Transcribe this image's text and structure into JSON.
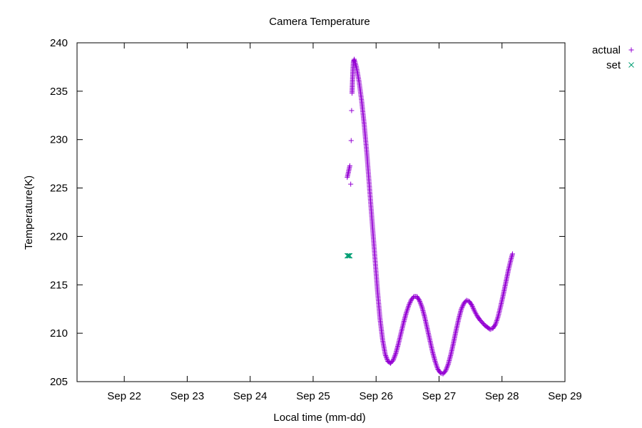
{
  "chart_data": {
    "type": "scatter",
    "title": "Camera Temperature",
    "xlabel": "Local time (mm-dd)",
    "ylabel": "Temperature(K)",
    "x_ticks": [
      "Sep 22",
      "Sep 23",
      "Sep 24",
      "Sep 25",
      "Sep 26",
      "Sep 27",
      "Sep 28",
      "Sep 29"
    ],
    "y_ticks": [
      "205",
      "210",
      "215",
      "220",
      "225",
      "230",
      "235",
      "240"
    ],
    "xlim": [
      "Sep 21 06:00",
      "Sep 29 00:00"
    ],
    "ylim": [
      205,
      240
    ],
    "grid": false,
    "legend": "top-right outside",
    "series": [
      {
        "name": "actual",
        "marker": "+",
        "color": "#9400d3",
        "points": [
          [
            "Sep 25 13:00",
            226.1
          ],
          [
            "Sep 25 13:20",
            226.5
          ],
          [
            "Sep 25 13:40",
            226.9
          ],
          [
            "Sep 25 14:00",
            227.3
          ],
          [
            "Sep 25 14:20",
            225.4
          ],
          [
            "Sep 25 14:30",
            229.9
          ],
          [
            "Sep 25 14:40",
            233.0
          ],
          [
            "Sep 25 14:50",
            234.8
          ],
          [
            "Sep 25 15:00",
            236.0
          ],
          [
            "Sep 25 15:10",
            237.2
          ],
          [
            "Sep 25 15:20",
            238.0
          ],
          [
            "Sep 25 15:40",
            238.3
          ],
          [
            "Sep 25 16:30",
            237.5
          ],
          [
            "Sep 25 17:30",
            236.0
          ],
          [
            "Sep 25 18:30",
            234.0
          ],
          [
            "Sep 25 19:30",
            231.5
          ],
          [
            "Sep 25 20:30",
            228.5
          ],
          [
            "Sep 25 21:30",
            225.0
          ],
          [
            "Sep 25 22:30",
            221.5
          ],
          [
            "Sep 25 23:30",
            218.0
          ],
          [
            "Sep 26 00:30",
            214.5
          ],
          [
            "Sep 26 01:30",
            211.5
          ],
          [
            "Sep 26 02:30",
            209.3
          ],
          [
            "Sep 26 03:30",
            207.8
          ],
          [
            "Sep 26 04:30",
            207.1
          ],
          [
            "Sep 26 05:30",
            206.9
          ],
          [
            "Sep 26 06:30",
            207.2
          ],
          [
            "Sep 26 07:30",
            207.9
          ],
          [
            "Sep 26 08:30",
            208.9
          ],
          [
            "Sep 26 09:30",
            210.0
          ],
          [
            "Sep 26 10:30",
            211.1
          ],
          [
            "Sep 26 11:30",
            212.1
          ],
          [
            "Sep 26 12:30",
            212.9
          ],
          [
            "Sep 26 13:30",
            213.5
          ],
          [
            "Sep 26 14:30",
            213.8
          ],
          [
            "Sep 26 15:30",
            213.8
          ],
          [
            "Sep 26 16:30",
            213.4
          ],
          [
            "Sep 26 17:30",
            212.7
          ],
          [
            "Sep 26 18:30",
            211.7
          ],
          [
            "Sep 26 19:30",
            210.5
          ],
          [
            "Sep 26 20:30",
            209.3
          ],
          [
            "Sep 26 21:30",
            208.1
          ],
          [
            "Sep 26 22:30",
            207.1
          ],
          [
            "Sep 26 23:30",
            206.3
          ],
          [
            "Sep 27 00:30",
            205.9
          ],
          [
            "Sep 27 01:30",
            205.8
          ],
          [
            "Sep 27 02:30",
            206.1
          ],
          [
            "Sep 27 03:30",
            206.8
          ],
          [
            "Sep 27 04:30",
            207.8
          ],
          [
            "Sep 27 05:30",
            209.0
          ],
          [
            "Sep 27 06:30",
            210.3
          ],
          [
            "Sep 27 07:30",
            211.5
          ],
          [
            "Sep 27 08:30",
            212.5
          ],
          [
            "Sep 27 09:30",
            213.1
          ],
          [
            "Sep 27 10:30",
            213.4
          ],
          [
            "Sep 27 11:30",
            213.3
          ],
          [
            "Sep 27 12:30",
            212.9
          ],
          [
            "Sep 27 13:30",
            212.3
          ],
          [
            "Sep 27 14:30",
            211.8
          ],
          [
            "Sep 27 15:30",
            211.4
          ],
          [
            "Sep 27 16:30",
            211.1
          ],
          [
            "Sep 27 17:30",
            210.8
          ],
          [
            "Sep 27 18:30",
            210.6
          ],
          [
            "Sep 27 19:30",
            210.4
          ],
          [
            "Sep 27 20:30",
            210.5
          ],
          [
            "Sep 27 21:30",
            210.9
          ],
          [
            "Sep 27 22:30",
            211.7
          ],
          [
            "Sep 27 23:30",
            212.8
          ],
          [
            "Sep 28 00:30",
            214.0
          ],
          [
            "Sep 28 01:30",
            215.3
          ],
          [
            "Sep 28 02:30",
            216.6
          ],
          [
            "Sep 28 03:30",
            217.7
          ],
          [
            "Sep 28 04:00",
            218.2
          ]
        ]
      },
      {
        "name": "set",
        "marker": "x",
        "color": "#009e73",
        "points": [
          [
            "Sep 25 13:00",
            218.0
          ],
          [
            "Sep 25 13:20",
            218.0
          ],
          [
            "Sep 25 13:40",
            218.0
          ],
          [
            "Sep 25 14:00",
            218.0
          ]
        ]
      }
    ]
  }
}
